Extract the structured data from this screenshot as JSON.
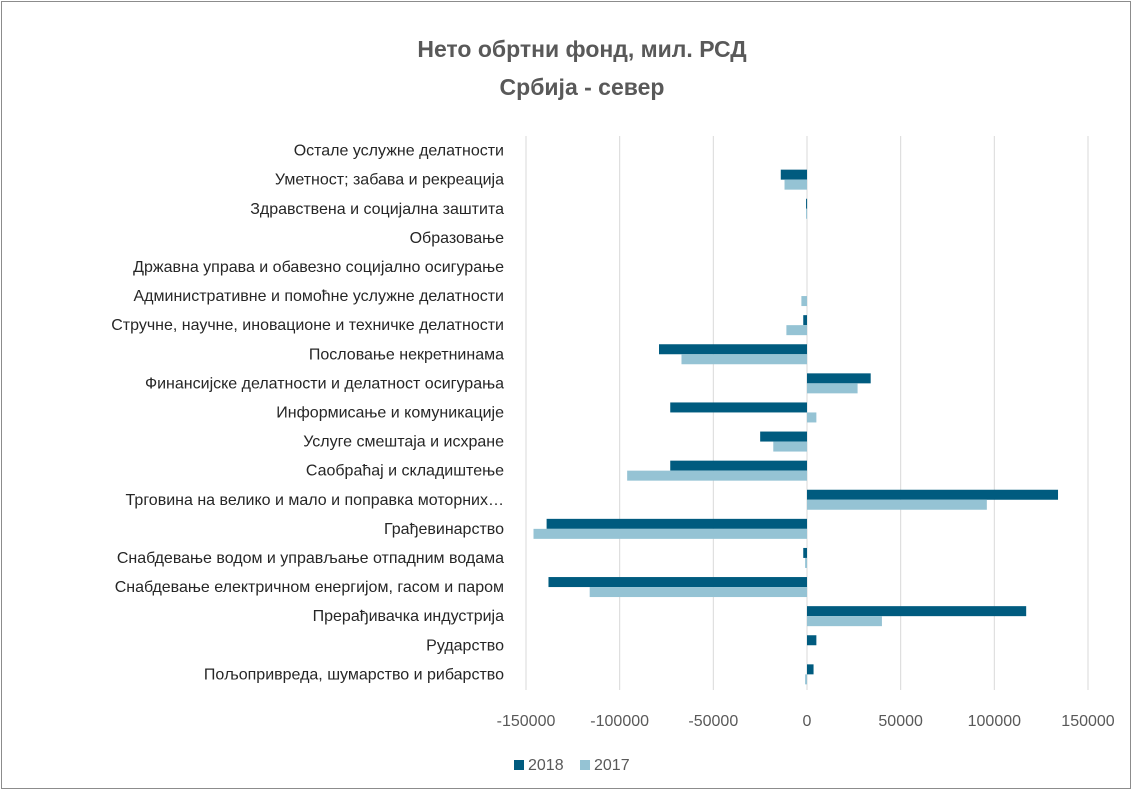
{
  "chart_data": {
    "type": "bar",
    "orientation": "horizontal",
    "title": "Нето обртни фонд, мил. РСД",
    "subtitle": "Србија - север",
    "categories": [
      "Остале услужне делатности",
      "Уметност; забава и рекреација",
      "Здравствена и социјална заштита",
      "Образовање",
      "Државна управа и обавезно социјално осигурање",
      "Административне и помоћне услужне делатности",
      "Стручне, научне, иновационе и техничке делатности",
      "Пословање некретнинама",
      "Финансијске делатности и делатност осигурања",
      "Информисање и комуникације",
      "Услуге смештаја и исхране",
      "Саобраћај и складиштење",
      "Трговина на велико и мало и поправка моторних…",
      "Грађевинарство",
      "Снабдевање водом и управљање отпадним водама",
      "Снабдевање електричном енергијом, гасом и паром",
      "Прерађивачка индустрија",
      "Рударство",
      "Пољопривреда, шумарство и рибарство"
    ],
    "series": [
      {
        "name": "2018",
        "color": "#005b7f",
        "values": [
          0,
          -14000,
          -500,
          0,
          0,
          0,
          -2000,
          -79000,
          34000,
          -73000,
          -25000,
          -73000,
          134000,
          -139000,
          -2000,
          -138000,
          117000,
          5000,
          3500
        ]
      },
      {
        "name": "2017",
        "color": "#95c3d4",
        "values": [
          0,
          -12000,
          -500,
          0,
          0,
          -3000,
          -11000,
          -67000,
          27000,
          5000,
          -18000,
          -96000,
          96000,
          -146000,
          -1000,
          -116000,
          40000,
          0,
          -1000
        ]
      }
    ],
    "xlim": [
      -150000,
      150000
    ],
    "xticks": [
      -150000,
      -100000,
      -50000,
      0,
      50000,
      100000,
      150000
    ],
    "tick_labels": [
      "-150000",
      "-100000",
      "-50000",
      "0",
      "50000",
      "100000",
      "150000"
    ],
    "grid": true,
    "legend_position": "bottom"
  }
}
